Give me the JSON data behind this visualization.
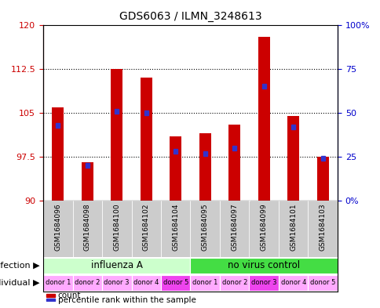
{
  "title": "GDS6063 / ILMN_3248613",
  "samples": [
    "GSM1684096",
    "GSM1684098",
    "GSM1684100",
    "GSM1684102",
    "GSM1684104",
    "GSM1684095",
    "GSM1684097",
    "GSM1684099",
    "GSM1684101",
    "GSM1684103"
  ],
  "count_values": [
    106.0,
    96.5,
    112.5,
    111.0,
    101.0,
    101.5,
    103.0,
    118.0,
    104.5,
    97.5
  ],
  "percentile_values": [
    43,
    20,
    51,
    50,
    28,
    27,
    30,
    65,
    42,
    24
  ],
  "ylim_left": [
    90,
    120
  ],
  "ylim_right": [
    0,
    100
  ],
  "yticks_left": [
    90,
    97.5,
    105,
    112.5,
    120
  ],
  "ytick_labels_left": [
    "90",
    "97.5",
    "105",
    "112.5",
    "120"
  ],
  "yticks_right": [
    0,
    25,
    50,
    75,
    100
  ],
  "ytick_labels_right": [
    "0%",
    "25",
    "50",
    "75",
    "100%"
  ],
  "bar_color_red": "#cc0000",
  "bar_color_blue": "#3333cc",
  "bar_width": 0.4,
  "infection_groups": [
    {
      "label": "influenza A",
      "start": 0,
      "end": 5,
      "color": "#ccffcc"
    },
    {
      "label": "no virus control",
      "start": 5,
      "end": 10,
      "color": "#44dd44"
    }
  ],
  "individual_labels": [
    "donor 1",
    "donor 2",
    "donor 3",
    "donor 4",
    "donor 5",
    "donor 1",
    "donor 2",
    "donor 3",
    "donor 4",
    "donor 5"
  ],
  "individual_colors": [
    "#ffaaff",
    "#ffaaff",
    "#ffaaff",
    "#ffaaff",
    "#ee44ee",
    "#ffaaff",
    "#ffaaff",
    "#ee44ee",
    "#ffaaff",
    "#ffaaff"
  ],
  "legend_count_label": "count",
  "legend_percentile_label": "percentile rank within the sample",
  "infection_label": "infection",
  "individual_label": "individual",
  "bg_color": "#ffffff",
  "axis_color_left": "#cc0000",
  "axis_color_right": "#0000cc",
  "sample_bg_color": "#cccccc"
}
